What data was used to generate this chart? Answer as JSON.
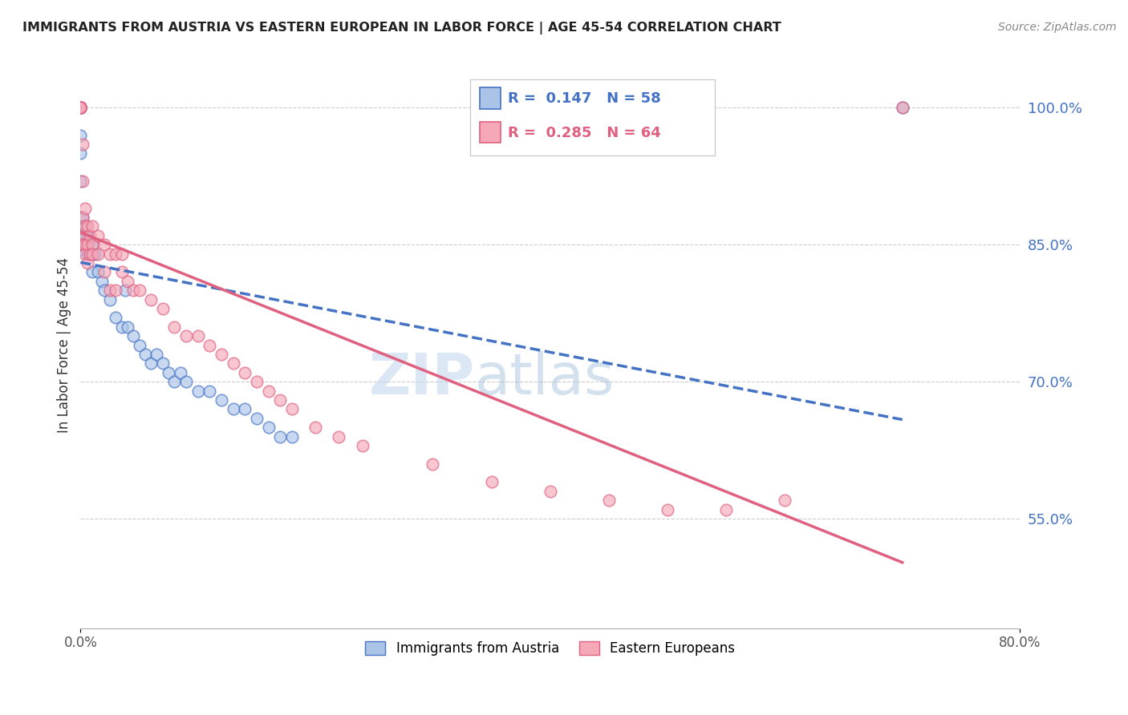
{
  "title": "IMMIGRANTS FROM AUSTRIA VS EASTERN EUROPEAN IN LABOR FORCE | AGE 45-54 CORRELATION CHART",
  "source": "Source: ZipAtlas.com",
  "ylabel": "In Labor Force | Age 45-54",
  "xlim": [
    0.0,
    0.8
  ],
  "ylim": [
    0.43,
    1.05
  ],
  "ytick_vals": [
    0.55,
    0.7,
    0.85,
    1.0
  ],
  "ytick_labels": [
    "55.0%",
    "70.0%",
    "85.0%",
    "100.0%"
  ],
  "R_austria": 0.147,
  "N_austria": 58,
  "R_eastern": 0.285,
  "N_eastern": 64,
  "color_austria": "#aac4e8",
  "color_eastern": "#f4a8b8",
  "line_color_austria": "#4472c4",
  "line_color_eastern": "#e06080",
  "legend_label_austria": "Immigrants from Austria",
  "legend_label_eastern": "Eastern Europeans",
  "watermark_zip": "ZIP",
  "watermark_atlas": "atlas",
  "austria_x": [
    0.0,
    0.0,
    0.0,
    0.0,
    0.0,
    0.0,
    0.0,
    0.0,
    0.0,
    0.0,
    0.0,
    0.0,
    0.0,
    0.0,
    0.0,
    0.0,
    0.002,
    0.002,
    0.002,
    0.002,
    0.004,
    0.004,
    0.004,
    0.006,
    0.006,
    0.008,
    0.008,
    0.01,
    0.01,
    0.012,
    0.015,
    0.018,
    0.02,
    0.025,
    0.03,
    0.035,
    0.038,
    0.04,
    0.045,
    0.05,
    0.055,
    0.06,
    0.065,
    0.07,
    0.075,
    0.08,
    0.085,
    0.09,
    0.1,
    0.11,
    0.12,
    0.13,
    0.14,
    0.15,
    0.16,
    0.17,
    0.18,
    0.7
  ],
  "austria_y": [
    1.0,
    1.0,
    1.0,
    1.0,
    1.0,
    1.0,
    1.0,
    0.97,
    0.95,
    0.92,
    0.88,
    0.87,
    0.86,
    0.855,
    0.85,
    0.845,
    0.88,
    0.87,
    0.86,
    0.85,
    0.87,
    0.86,
    0.85,
    0.86,
    0.84,
    0.855,
    0.84,
    0.85,
    0.82,
    0.84,
    0.82,
    0.81,
    0.8,
    0.79,
    0.77,
    0.76,
    0.8,
    0.76,
    0.75,
    0.74,
    0.73,
    0.72,
    0.73,
    0.72,
    0.71,
    0.7,
    0.71,
    0.7,
    0.69,
    0.69,
    0.68,
    0.67,
    0.67,
    0.66,
    0.65,
    0.64,
    0.64,
    1.0
  ],
  "eastern_x": [
    0.0,
    0.0,
    0.0,
    0.0,
    0.0,
    0.0,
    0.0,
    0.0,
    0.0,
    0.0,
    0.002,
    0.002,
    0.002,
    0.002,
    0.002,
    0.004,
    0.004,
    0.004,
    0.004,
    0.006,
    0.006,
    0.006,
    0.008,
    0.008,
    0.01,
    0.01,
    0.01,
    0.015,
    0.015,
    0.02,
    0.02,
    0.025,
    0.025,
    0.03,
    0.03,
    0.035,
    0.035,
    0.04,
    0.045,
    0.05,
    0.06,
    0.07,
    0.08,
    0.09,
    0.1,
    0.11,
    0.12,
    0.13,
    0.14,
    0.15,
    0.16,
    0.17,
    0.18,
    0.2,
    0.22,
    0.24,
    0.3,
    0.35,
    0.4,
    0.45,
    0.5,
    0.55,
    0.6,
    0.7
  ],
  "eastern_y": [
    1.0,
    1.0,
    1.0,
    1.0,
    1.0,
    1.0,
    1.0,
    1.0,
    1.0,
    1.0,
    0.96,
    0.92,
    0.88,
    0.86,
    0.85,
    0.89,
    0.87,
    0.85,
    0.84,
    0.87,
    0.85,
    0.83,
    0.86,
    0.84,
    0.87,
    0.85,
    0.84,
    0.86,
    0.84,
    0.85,
    0.82,
    0.84,
    0.8,
    0.84,
    0.8,
    0.84,
    0.82,
    0.81,
    0.8,
    0.8,
    0.79,
    0.78,
    0.76,
    0.75,
    0.75,
    0.74,
    0.73,
    0.72,
    0.71,
    0.7,
    0.69,
    0.68,
    0.67,
    0.65,
    0.64,
    0.63,
    0.61,
    0.59,
    0.58,
    0.57,
    0.56,
    0.56,
    0.57,
    1.0
  ]
}
